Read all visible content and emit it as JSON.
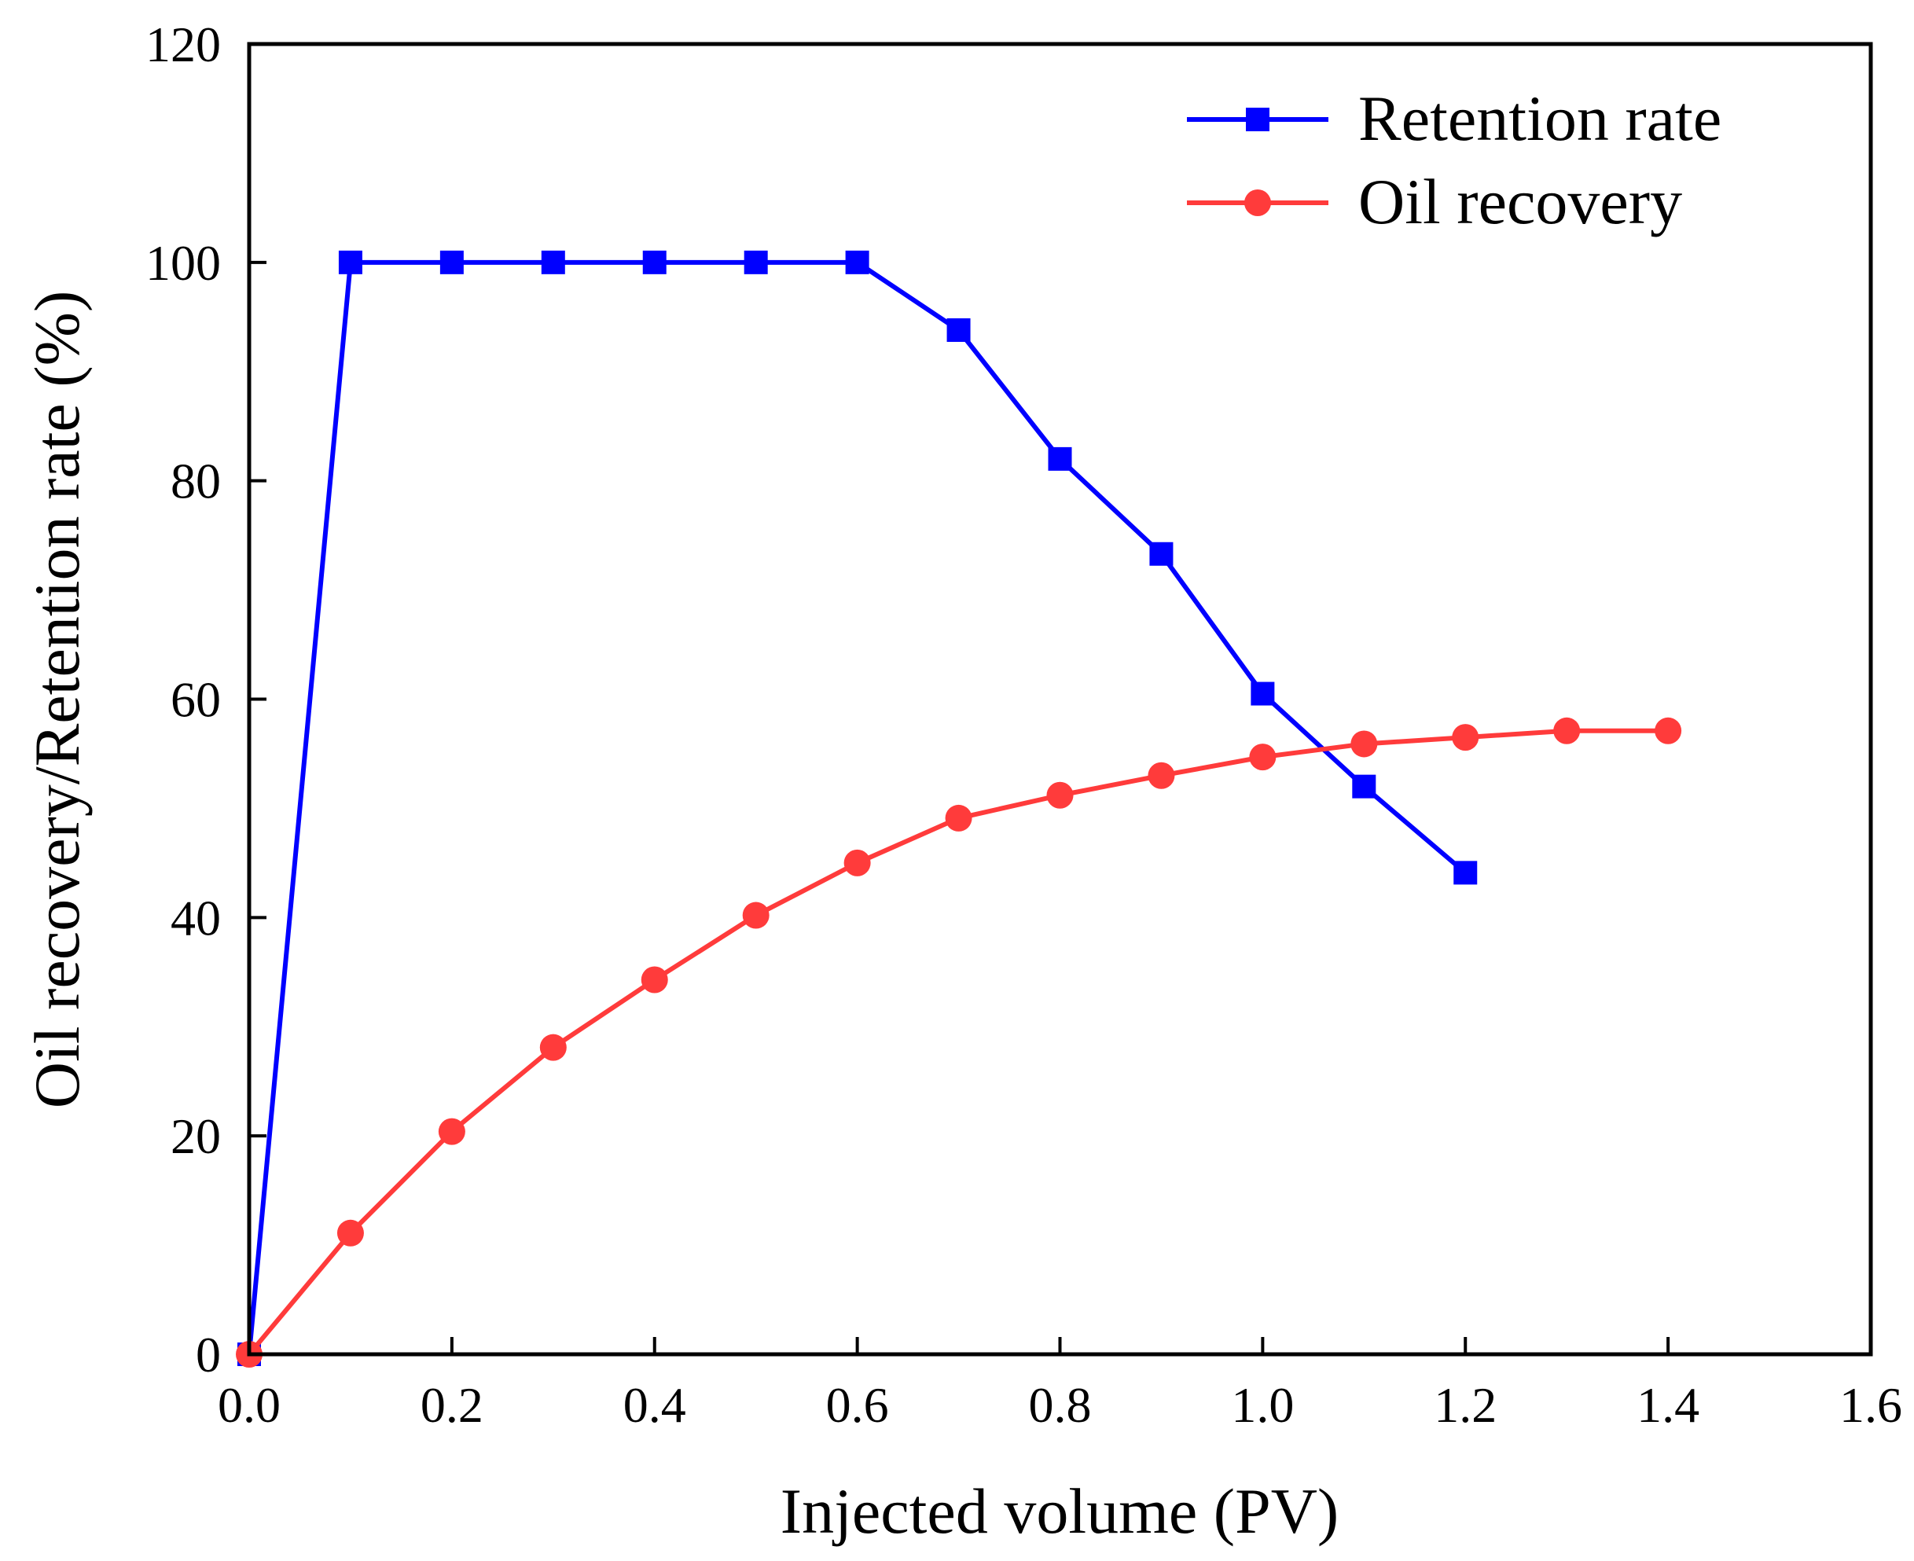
{
  "chart_data": {
    "type": "line",
    "title": "",
    "xlabel": "Injected volume (PV)",
    "ylabel": "Oil recovery/Retention rate (%)",
    "xlim": [
      0,
      1.6
    ],
    "ylim": [
      0,
      120
    ],
    "xticks": [
      "0.0",
      "0.2",
      "0.4",
      "0.6",
      "0.8",
      "1.0",
      "1.2",
      "1.4",
      "1.6"
    ],
    "yticks": [
      "0",
      "20",
      "40",
      "60",
      "80",
      "100",
      "120"
    ],
    "grid": false,
    "legend_position": "top-right",
    "series": [
      {
        "name": "Retention rate",
        "color": "#0000ff",
        "marker": "square",
        "x": [
          0,
          0.1,
          0.2,
          0.3,
          0.4,
          0.5,
          0.6,
          0.7,
          0.8,
          0.9,
          1.0,
          1.1,
          1.2
        ],
        "y": [
          0,
          100,
          100,
          100,
          100,
          100,
          100,
          93.8,
          82.0,
          73.3,
          60.5,
          52.0,
          44.1
        ]
      },
      {
        "name": "Oil recovery",
        "color": "#ff3b3b",
        "marker": "circle",
        "x": [
          0,
          0.1,
          0.2,
          0.3,
          0.4,
          0.5,
          0.6,
          0.7,
          0.8,
          0.9,
          1.0,
          1.1,
          1.2,
          1.3,
          1.4
        ],
        "y": [
          0,
          11.1,
          20.4,
          28.1,
          34.3,
          40.2,
          45.0,
          49.1,
          51.2,
          53.0,
          54.7,
          55.9,
          56.5,
          57.1,
          57.1
        ]
      }
    ]
  }
}
